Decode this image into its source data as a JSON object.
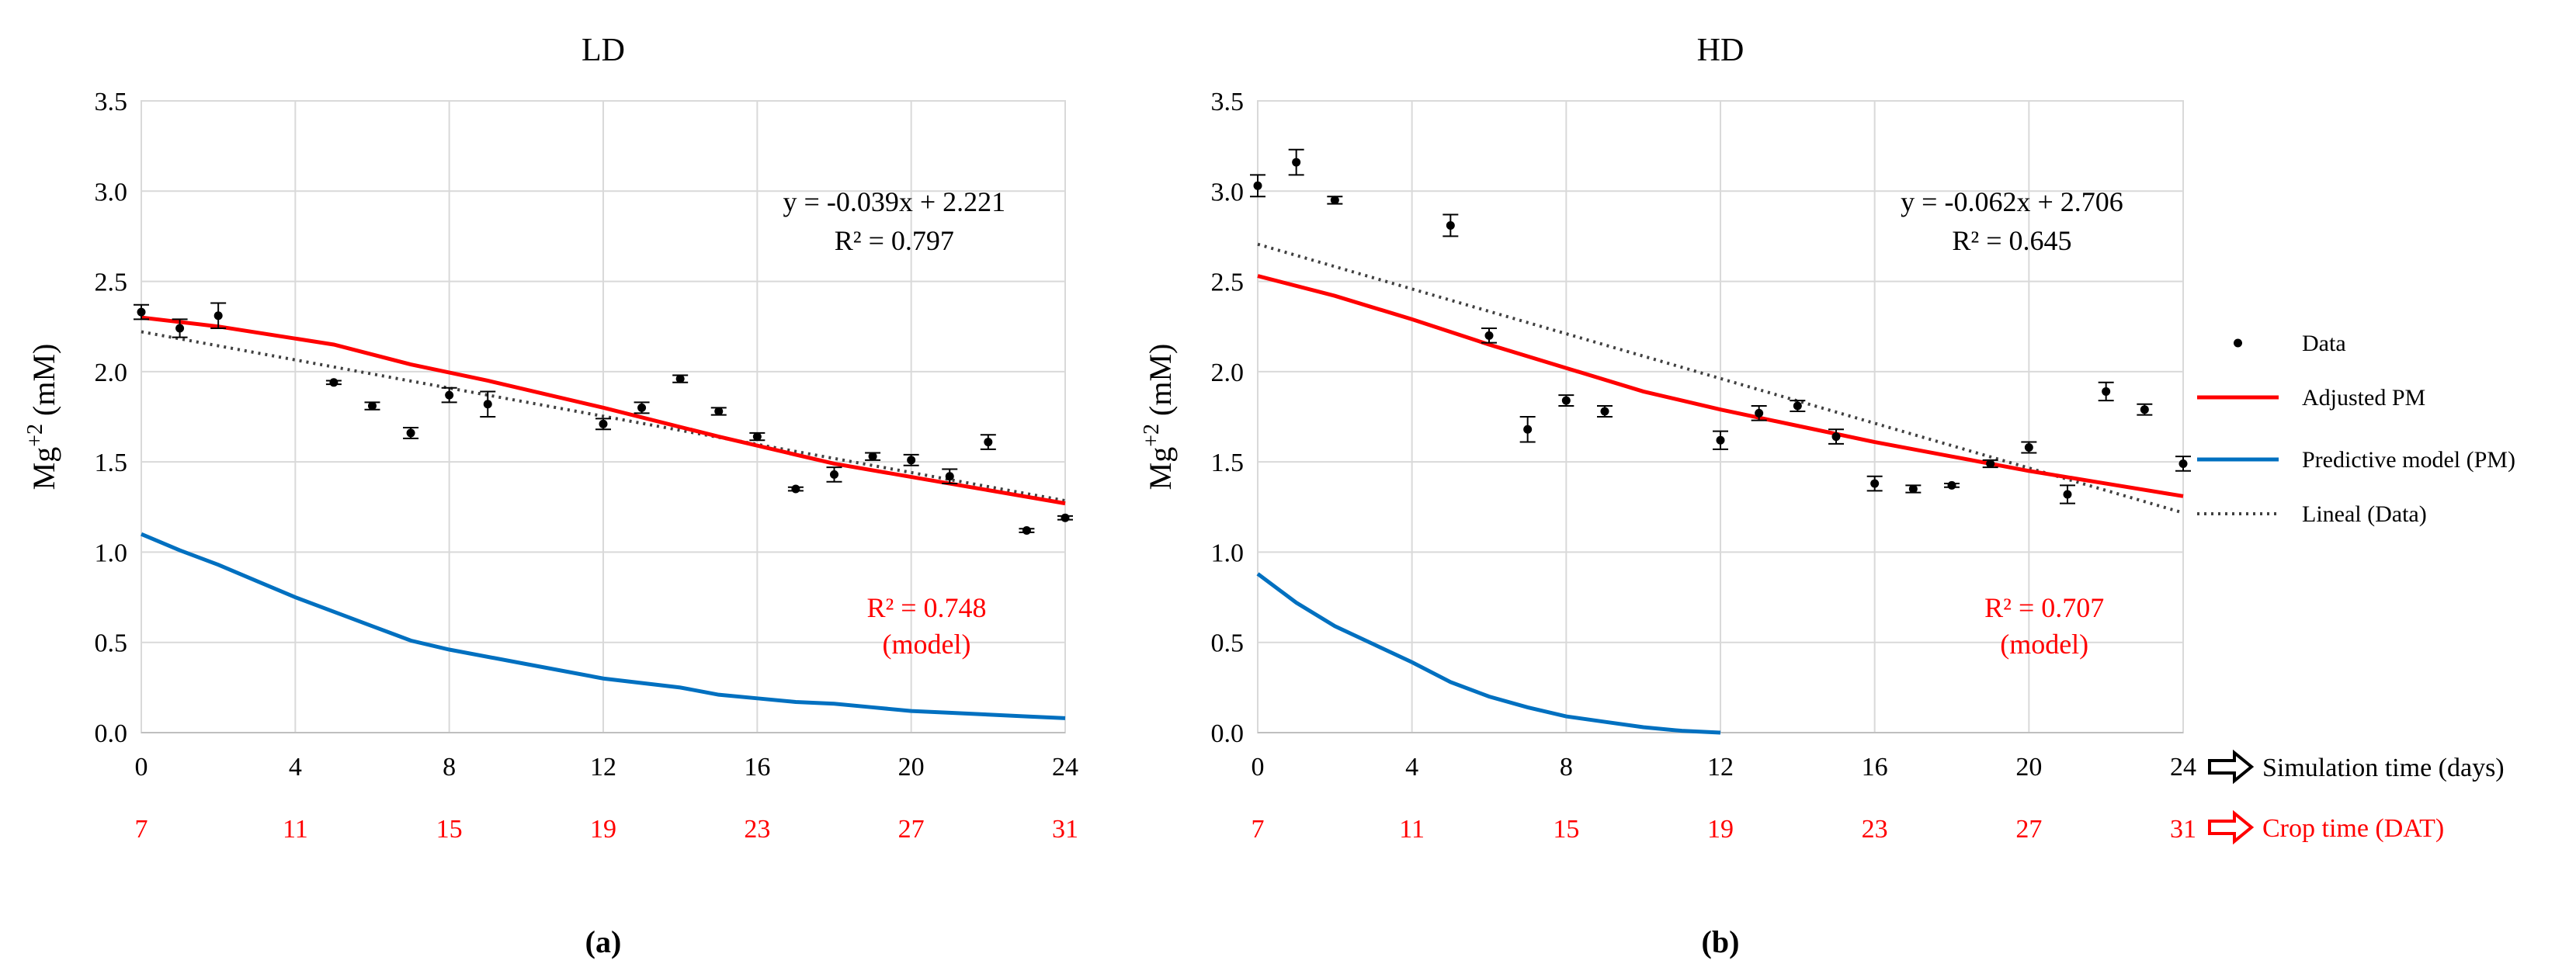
{
  "chart_data": [
    {
      "type": "scatter",
      "panel_label": "(a)",
      "title": "LD",
      "ylabel": "Mg",
      "ylabel_sup": "+2",
      "ylabel_unit": " (mM)",
      "xlim": [
        0,
        24
      ],
      "ylim": [
        0,
        3.5
      ],
      "x_ticks": [
        "0",
        "4",
        "8",
        "12",
        "16",
        "20",
        "24"
      ],
      "crop_ticks": [
        "7",
        "11",
        "15",
        "19",
        "23",
        "27",
        "31"
      ],
      "y_ticks": [
        "0.0",
        "0.5",
        "1.0",
        "1.5",
        "2.0",
        "2.5",
        "3.0",
        "3.5"
      ],
      "data": {
        "x": [
          0,
          1,
          2,
          5,
          6,
          7,
          8,
          9,
          12,
          13,
          14,
          15,
          16,
          17,
          18,
          19,
          20,
          21,
          22,
          23,
          24
        ],
        "y": [
          2.33,
          2.24,
          2.31,
          1.94,
          1.81,
          1.66,
          1.87,
          1.82,
          1.71,
          1.8,
          1.96,
          1.78,
          1.64,
          1.35,
          1.43,
          1.53,
          1.51,
          1.42,
          1.61,
          1.12,
          1.19
        ],
        "err": [
          0.04,
          0.05,
          0.07,
          0.01,
          0.02,
          0.03,
          0.04,
          0.07,
          0.03,
          0.03,
          0.02,
          0.02,
          0.02,
          0.01,
          0.04,
          0.02,
          0.03,
          0.04,
          0.04,
          0.01,
          0.01
        ]
      },
      "adjusted_pm": {
        "x": [
          0,
          2,
          5,
          7,
          9,
          12,
          15,
          18,
          21,
          24
        ],
        "y": [
          2.3,
          2.25,
          2.15,
          2.04,
          1.95,
          1.8,
          1.64,
          1.49,
          1.38,
          1.27
        ]
      },
      "predictive_pm": {
        "x": [
          0,
          1,
          2,
          3,
          4,
          5,
          6,
          7,
          8,
          10,
          12,
          14,
          15,
          16,
          17,
          18,
          19,
          20,
          21,
          22,
          23,
          24
        ],
        "y": [
          1.1,
          1.01,
          0.93,
          0.84,
          0.75,
          0.67,
          0.59,
          0.51,
          0.46,
          0.38,
          0.3,
          0.25,
          0.21,
          0.19,
          0.17,
          0.16,
          0.14,
          0.12,
          0.11,
          0.1,
          0.09,
          0.08
        ]
      },
      "trendline": {
        "slope": -0.039,
        "intercept": 2.221
      },
      "equation": "y = -0.039x + 2.221",
      "r2_data": "R² = 0.797",
      "r2_model": "R² = 0.748",
      "model_note": "(model)"
    },
    {
      "type": "scatter",
      "panel_label": "(b)",
      "title": "HD",
      "ylabel": "Mg",
      "ylabel_sup": "+2",
      "ylabel_unit": " (mM)",
      "xlim": [
        0,
        24
      ],
      "ylim": [
        0,
        3.5
      ],
      "x_ticks": [
        "0",
        "4",
        "8",
        "12",
        "16",
        "20",
        "24"
      ],
      "crop_ticks": [
        "7",
        "11",
        "15",
        "19",
        "23",
        "27",
        "31"
      ],
      "y_ticks": [
        "0.0",
        "0.5",
        "1.0",
        "1.5",
        "2.0",
        "2.5",
        "3.0",
        "3.5"
      ],
      "data": {
        "x": [
          0,
          1,
          2,
          5,
          6,
          7,
          8,
          9,
          12,
          13,
          14,
          15,
          16,
          17,
          18,
          19,
          20,
          21,
          22,
          23,
          24
        ],
        "y": [
          3.03,
          3.16,
          2.95,
          2.81,
          2.2,
          1.68,
          1.84,
          1.78,
          1.62,
          1.77,
          1.81,
          1.64,
          1.38,
          1.35,
          1.37,
          1.49,
          1.58,
          1.32,
          1.89,
          1.79,
          1.49
        ],
        "err": [
          0.06,
          0.07,
          0.02,
          0.06,
          0.04,
          0.07,
          0.03,
          0.03,
          0.05,
          0.04,
          0.03,
          0.04,
          0.04,
          0.02,
          0.01,
          0.02,
          0.03,
          0.05,
          0.05,
          0.03,
          0.04
        ]
      },
      "adjusted_pm": {
        "x": [
          0,
          2,
          4,
          6,
          8,
          10,
          12,
          14,
          16,
          18,
          20,
          22,
          24
        ],
        "y": [
          2.53,
          2.42,
          2.29,
          2.15,
          2.02,
          1.89,
          1.79,
          1.7,
          1.61,
          1.53,
          1.45,
          1.38,
          1.31
        ]
      },
      "predictive_pm": {
        "x": [
          0,
          1,
          2,
          3,
          4,
          5,
          6,
          7,
          8,
          9,
          10,
          11,
          12
        ],
        "y": [
          0.88,
          0.72,
          0.59,
          0.49,
          0.39,
          0.28,
          0.2,
          0.14,
          0.09,
          0.06,
          0.03,
          0.01,
          0.0
        ]
      },
      "trendline": {
        "slope": -0.062,
        "intercept": 2.706
      },
      "equation": "y = -0.062x + 2.706",
      "r2_data": "R² = 0.645",
      "r2_model": "R² = 0.707",
      "model_note": "(model)"
    }
  ],
  "legend": {
    "entries": [
      "Data",
      "Adjusted PM",
      "Predictive model (PM)",
      "Lineal (Data)"
    ],
    "placement": "right"
  },
  "axis_captions": {
    "simulation": "Simulation time (days)",
    "crop": "Crop time (DAT)"
  },
  "colors": {
    "data": "#000000",
    "adjusted": "#ff0000",
    "predictive": "#0070c0",
    "trend": "#404040",
    "crop_text": "#ff0000",
    "grid": "#d9d9d9",
    "arrow_sim": "#000000",
    "arrow_crop": "#ff0000"
  }
}
